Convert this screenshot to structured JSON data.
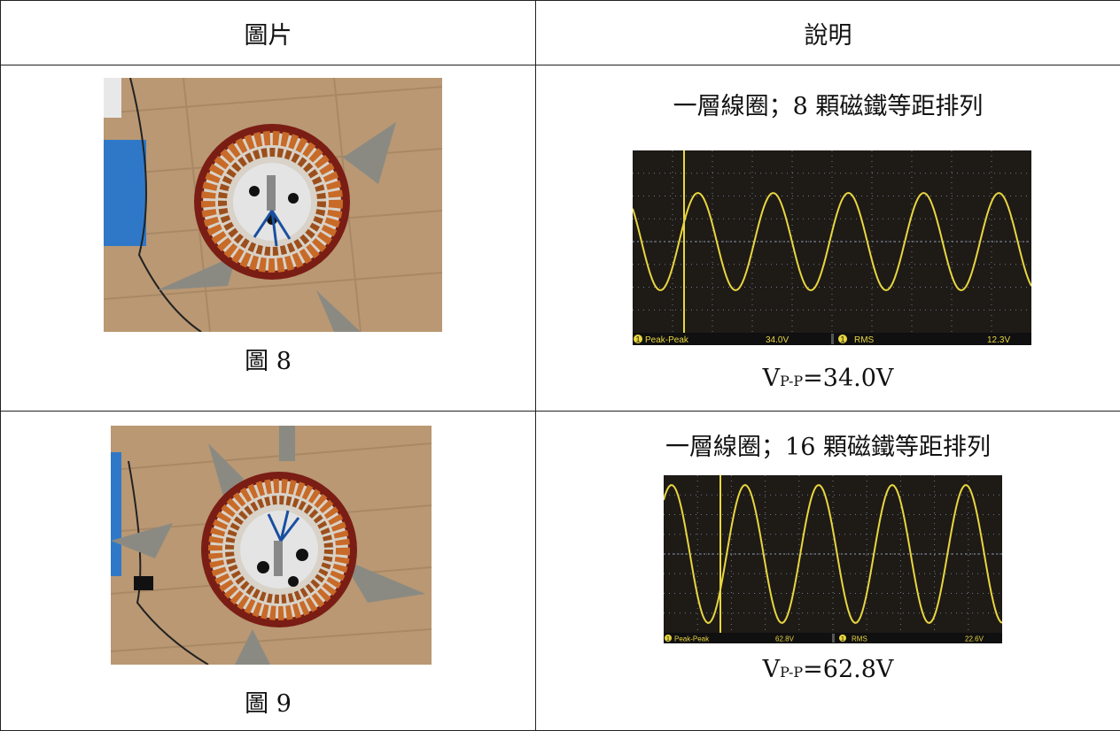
{
  "table": {
    "headers": [
      "圖片",
      "說明"
    ],
    "rows": [
      {
        "figure_caption": "圖 8",
        "description": "一層線圈；8 顆磁鐵等距排列",
        "scope": {
          "measure1_label": "Peak-Peak",
          "measure1_value": "34.0V",
          "measure2_label": "RMS",
          "measure2_value": "12.3V",
          "channel": "1"
        },
        "voltage": {
          "prefix": "V",
          "sub": "P-P",
          "value": "=34.0V"
        }
      },
      {
        "figure_caption": "圖 9",
        "description": "一層線圈；16 顆磁鐵等距排列",
        "scope": {
          "measure1_label": "Peak-Peak",
          "measure1_value": "62.8V",
          "measure2_label": "RMS",
          "measure2_value": "22.6V",
          "channel": "1"
        },
        "voltage": {
          "prefix": "V",
          "sub": "P-P",
          "value": "=62.8V"
        }
      }
    ]
  },
  "colors": {
    "trace": "#e8d640",
    "grid": "#6a7d8f",
    "wood": "#b99873",
    "drum": "#7a1d14",
    "coil": "#c86a28"
  }
}
